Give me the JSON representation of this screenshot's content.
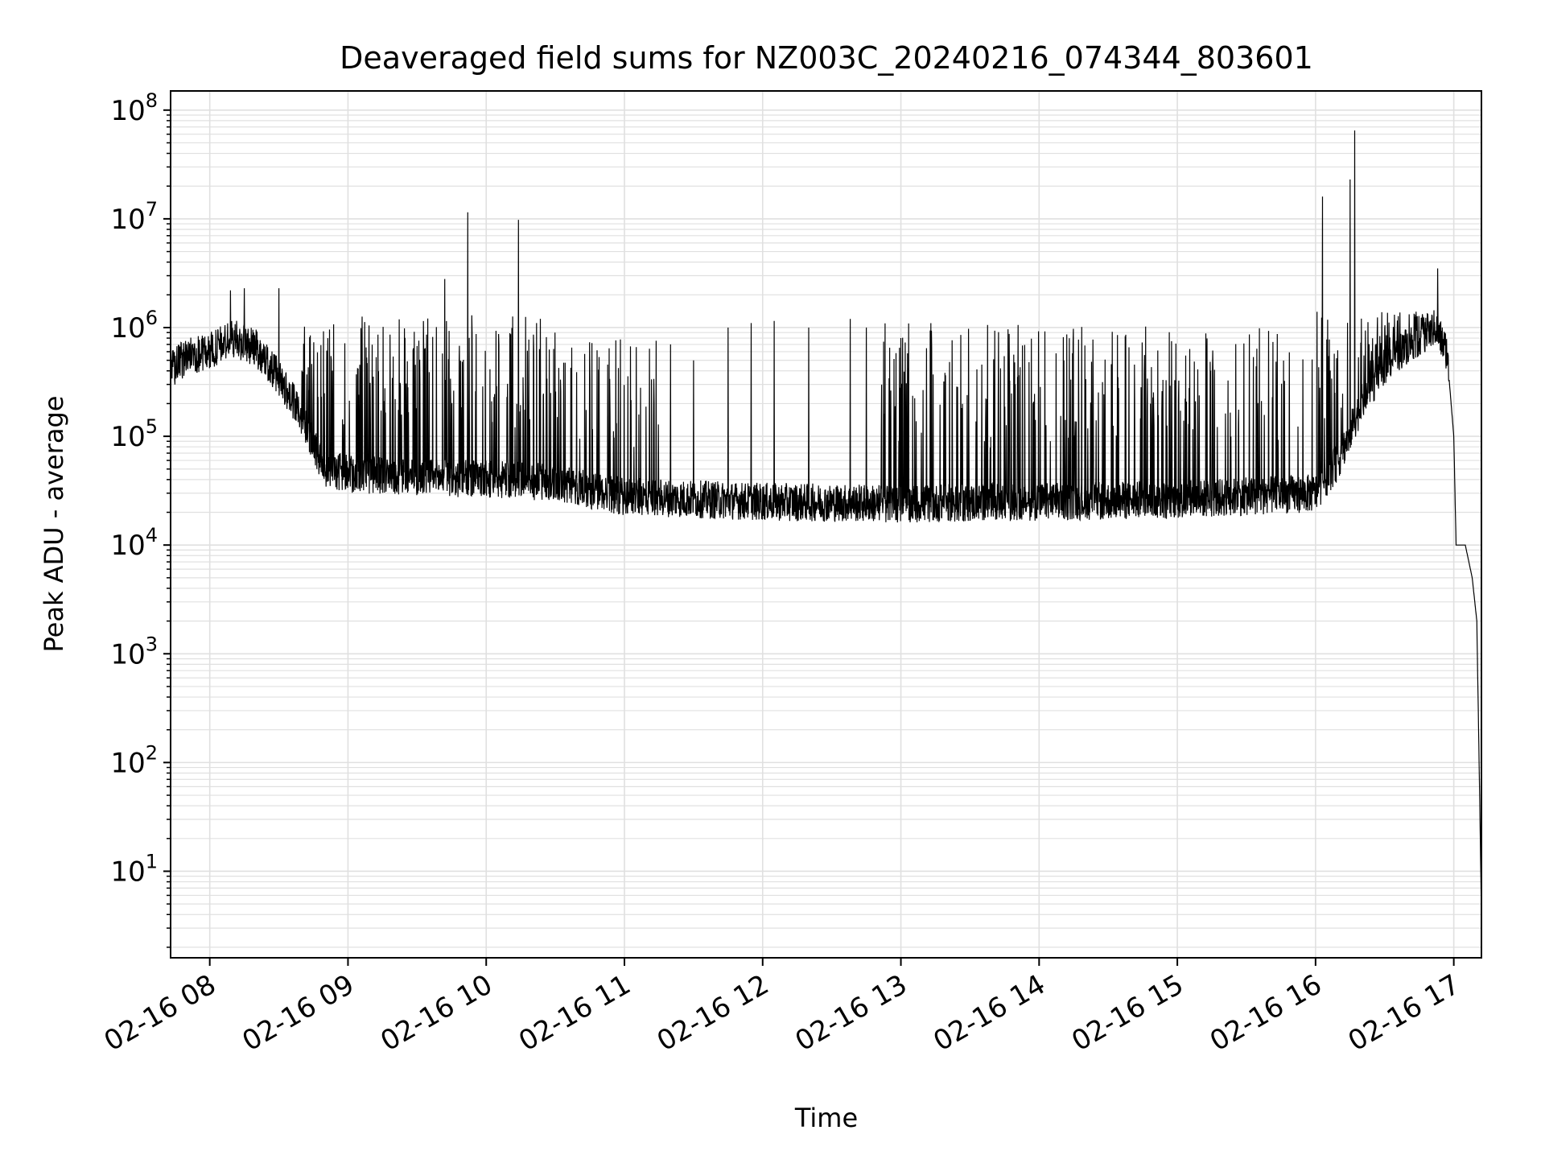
{
  "chart_data": {
    "type": "line",
    "title": "Deaveraged field sums for NZ003C_20240216_074344_803601",
    "xlabel": "Time",
    "ylabel": "Peak ADU - average",
    "yscale": "log",
    "xlim": [
      "2024-02-16 07:43",
      "2024-02-16 17:12"
    ],
    "ylim": [
      1.6,
      150000000
    ],
    "grid": true,
    "line_color": "#000000",
    "grid_color": "#e0e0e0",
    "x_ticks": [
      {
        "t": "2024-02-16 08:00",
        "label": "02-16 08"
      },
      {
        "t": "2024-02-16 09:00",
        "label": "02-16 09"
      },
      {
        "t": "2024-02-16 10:00",
        "label": "02-16 10"
      },
      {
        "t": "2024-02-16 11:00",
        "label": "02-16 11"
      },
      {
        "t": "2024-02-16 12:00",
        "label": "02-16 12"
      },
      {
        "t": "2024-02-16 13:00",
        "label": "02-16 13"
      },
      {
        "t": "2024-02-16 14:00",
        "label": "02-16 14"
      },
      {
        "t": "2024-02-16 15:00",
        "label": "02-16 15"
      },
      {
        "t": "2024-02-16 16:00",
        "label": "02-16 16"
      },
      {
        "t": "2024-02-16 17:00",
        "label": "02-16 17"
      }
    ],
    "y_ticks": [
      {
        "exp": 1,
        "base": "10",
        "sup": "1"
      },
      {
        "exp": 2,
        "base": "10",
        "sup": "2"
      },
      {
        "exp": 3,
        "base": "10",
        "sup": "3"
      },
      {
        "exp": 4,
        "base": "10",
        "sup": "4"
      },
      {
        "exp": 5,
        "base": "10",
        "sup": "5"
      },
      {
        "exp": 6,
        "base": "10",
        "sup": "6"
      },
      {
        "exp": 7,
        "base": "10",
        "sup": "7"
      },
      {
        "exp": 8,
        "base": "10",
        "sup": "8"
      }
    ],
    "series": [
      {
        "baseline": [
          [
            "2024-02-16 07:43",
            400000
          ],
          [
            "2024-02-16 07:50",
            550000
          ],
          [
            "2024-02-16 08:00",
            600000
          ],
          [
            "2024-02-16 08:10",
            800000
          ],
          [
            "2024-02-16 08:20",
            650000
          ],
          [
            "2024-02-16 08:30",
            350000
          ],
          [
            "2024-02-16 08:40",
            150000
          ],
          [
            "2024-02-16 08:45",
            80000
          ],
          [
            "2024-02-16 08:50",
            50000
          ],
          [
            "2024-02-16 09:00",
            45000
          ],
          [
            "2024-02-16 09:30",
            42000
          ],
          [
            "2024-02-16 10:00",
            40000
          ],
          [
            "2024-02-16 10:30",
            38000
          ],
          [
            "2024-02-16 10:45",
            32000
          ],
          [
            "2024-02-16 11:00",
            28000
          ],
          [
            "2024-02-16 12:00",
            25000
          ],
          [
            "2024-02-16 13:00",
            24000
          ],
          [
            "2024-02-16 14:00",
            25000
          ],
          [
            "2024-02-16 15:00",
            26000
          ],
          [
            "2024-02-16 15:30",
            28000
          ],
          [
            "2024-02-16 16:00",
            30000
          ],
          [
            "2024-02-16 16:10",
            60000
          ],
          [
            "2024-02-16 16:20",
            200000
          ],
          [
            "2024-02-16 16:30",
            450000
          ],
          [
            "2024-02-16 16:40",
            700000
          ],
          [
            "2024-02-16 16:52",
            1000000
          ],
          [
            "2024-02-16 16:57",
            600000
          ],
          [
            "2024-02-16 17:00",
            100000
          ],
          [
            "2024-02-16 17:01",
            10000
          ],
          [
            "2024-02-16 17:05",
            10000
          ],
          [
            "2024-02-16 17:08",
            5000
          ],
          [
            "2024-02-16 17:10",
            2000
          ],
          [
            "2024-02-16 17:11",
            100
          ],
          [
            "2024-02-16 17:12",
            4
          ]
        ],
        "dense_spikes": [
          {
            "from": "2024-02-16 08:40",
            "to": "2024-02-16 10:30",
            "peak": 1300000
          },
          {
            "from": "2024-02-16 10:30",
            "to": "2024-02-16 11:15",
            "peak": 800000
          },
          {
            "from": "2024-02-16 12:50",
            "to": "2024-02-16 16:00",
            "peak": 1100000
          },
          {
            "from": "2024-02-16 16:00",
            "to": "2024-02-16 16:50",
            "peak": 1400000
          }
        ],
        "sparse_spikes": [
          [
            "2024-02-16 08:09",
            2200000
          ],
          [
            "2024-02-16 08:15",
            2300000
          ],
          [
            "2024-02-16 08:30",
            2300000
          ],
          [
            "2024-02-16 09:42",
            2800000
          ],
          [
            "2024-02-16 09:52",
            11500000
          ],
          [
            "2024-02-16 10:14",
            9800000
          ],
          [
            "2024-02-16 11:20",
            700000
          ],
          [
            "2024-02-16 11:30",
            500000
          ],
          [
            "2024-02-16 11:45",
            1000000
          ],
          [
            "2024-02-16 11:55",
            1100000
          ],
          [
            "2024-02-16 12:05",
            1150000
          ],
          [
            "2024-02-16 12:20",
            1000000
          ],
          [
            "2024-02-16 12:38",
            1200000
          ],
          [
            "2024-02-16 12:45",
            1000000
          ],
          [
            "2024-02-16 16:03",
            16000000
          ],
          [
            "2024-02-16 16:15",
            23000000
          ],
          [
            "2024-02-16 16:17",
            65000000
          ],
          [
            "2024-02-16 16:53",
            3500000
          ]
        ]
      }
    ]
  }
}
